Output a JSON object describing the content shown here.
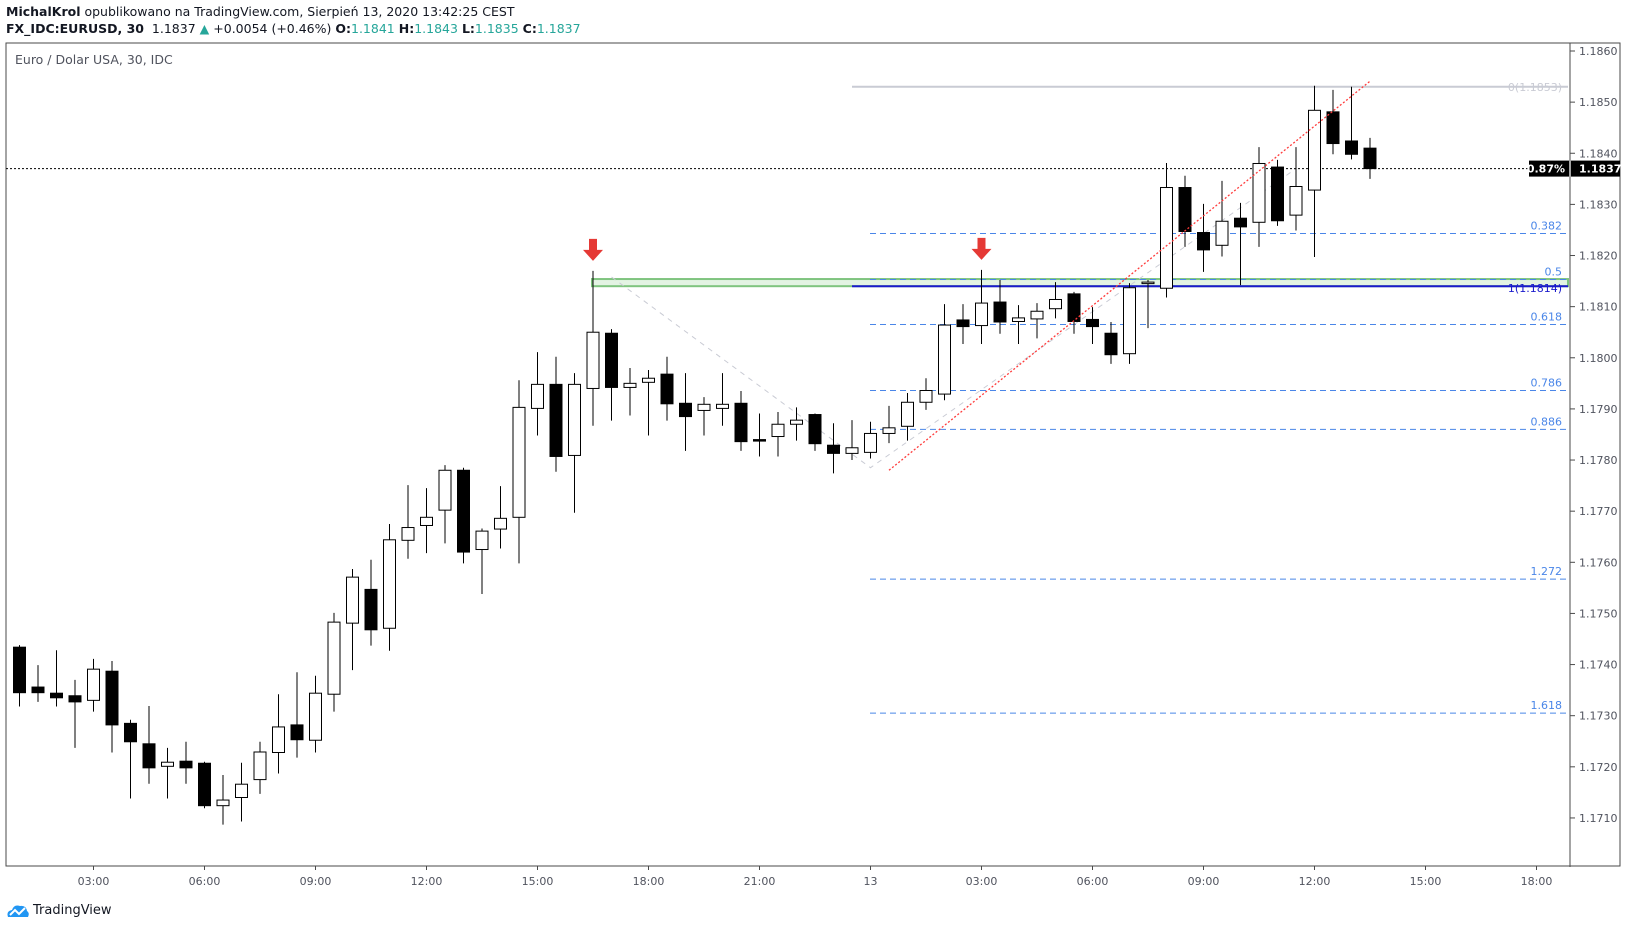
{
  "header": {
    "author": "MichalKrol",
    "published_text": "opublikowano na TradingView.com, Sierpień 13, 2020 13:42:25 CEST",
    "symbol": "FX_IDC:EURUSD, 30",
    "last": "1.1837",
    "change": "+0.0054 (+0.46%)",
    "o_label": "O:",
    "o": "1.1841",
    "h_label": "H:",
    "h": "1.1843",
    "l_label": "L:",
    "l": "1.1835",
    "c_label": "C:",
    "c": "1.1837"
  },
  "legend_title": "Euro / Dolar USA, 30, IDC",
  "branding": "TradingView",
  "colors": {
    "up_body": "#ffffff",
    "down_body": "#000000",
    "teal": "#26a69a",
    "fib_blue": "#4a86e8",
    "zone_fill": "#e3f3e3",
    "zone_border": "#7fc47f",
    "arrow": "#e53935",
    "trend": "#ff3b3b",
    "level0": "#c9cbd4",
    "level1": "#1a1acc"
  },
  "chart_data": {
    "type": "candlestick",
    "title": "Euro / Dolar USA, 30, IDC",
    "ylim": [
      1.17,
      1.1863
    ],
    "y_ticks": [
      "1.1860",
      "1.1850",
      "1.1840",
      "1.1830",
      "1.1820",
      "1.1810",
      "1.1800",
      "1.1790",
      "1.1780",
      "1.1770",
      "1.1760",
      "1.1750",
      "1.1740",
      "1.1730",
      "1.1720",
      "1.1710"
    ],
    "x_ticks": [
      {
        "t": "12 03:00",
        "label": "03:00"
      },
      {
        "t": "12 06:00",
        "label": "06:00"
      },
      {
        "t": "12 09:00",
        "label": "09:00"
      },
      {
        "t": "12 12:00",
        "label": "12:00"
      },
      {
        "t": "12 15:00",
        "label": "15:00"
      },
      {
        "t": "12 18:00",
        "label": "18:00"
      },
      {
        "t": "12 21:00",
        "label": "21:00"
      },
      {
        "t": "13 00:00",
        "label": "13"
      },
      {
        "t": "13 03:00",
        "label": "03:00"
      },
      {
        "t": "13 06:00",
        "label": "06:00"
      },
      {
        "t": "13 09:00",
        "label": "09:00"
      },
      {
        "t": "13 12:00",
        "label": "12:00"
      },
      {
        "t": "13 15:00",
        "label": "15:00"
      },
      {
        "t": "13 18:00",
        "label": "18:00"
      }
    ],
    "candles_fields": [
      "time",
      "open",
      "high",
      "low",
      "close"
    ],
    "candles": [
      [
        "12 01:00",
        1.17434,
        1.17438,
        1.17318,
        1.17345
      ],
      [
        "12 01:30",
        1.17356,
        1.17399,
        1.17327,
        1.17345
      ],
      [
        "12 02:00",
        1.17344,
        1.17428,
        1.17318,
        1.17335
      ],
      [
        "12 02:30",
        1.17339,
        1.1737,
        1.17237,
        1.17327
      ],
      [
        "12 03:00",
        1.1733,
        1.17411,
        1.17308,
        1.17391
      ],
      [
        "12 03:30",
        1.17387,
        1.17407,
        1.17228,
        1.17282
      ],
      [
        "12 04:00",
        1.17285,
        1.17292,
        1.17138,
        1.17249
      ],
      [
        "12 04:30",
        1.17245,
        1.17319,
        1.17167,
        1.17198
      ],
      [
        "12 05:00",
        1.17201,
        1.17237,
        1.17138,
        1.17209
      ],
      [
        "12 05:30",
        1.17211,
        1.17249,
        1.17167,
        1.17198
      ],
      [
        "12 06:00",
        1.17207,
        1.1721,
        1.17119,
        1.17124
      ],
      [
        "12 06:30",
        1.17124,
        1.17184,
        1.17087,
        1.17135
      ],
      [
        "12 07:00",
        1.1714,
        1.17208,
        1.17093,
        1.17166
      ],
      [
        "12 07:30",
        1.17175,
        1.17249,
        1.17147,
        1.17229
      ],
      [
        "12 08:00",
        1.17228,
        1.17342,
        1.17187,
        1.17278
      ],
      [
        "12 08:30",
        1.17282,
        1.17385,
        1.17218,
        1.17253
      ],
      [
        "12 09:00",
        1.17252,
        1.17378,
        1.17228,
        1.17344
      ],
      [
        "12 09:30",
        1.17342,
        1.17501,
        1.17308,
        1.17483
      ],
      [
        "12 10:00",
        1.17481,
        1.17587,
        1.17389,
        1.17571
      ],
      [
        "12 10:30",
        1.17547,
        1.17605,
        1.17437,
        1.17468
      ],
      [
        "12 11:00",
        1.17471,
        1.17675,
        1.17427,
        1.17644
      ],
      [
        "12 11:30",
        1.17643,
        1.17751,
        1.17607,
        1.17668
      ],
      [
        "12 12:00",
        1.17672,
        1.17745,
        1.17618,
        1.17688
      ],
      [
        "12 12:30",
        1.17702,
        1.1779,
        1.17637,
        1.1778
      ],
      [
        "12 13:00",
        1.1778,
        1.17785,
        1.17598,
        1.1762
      ],
      [
        "12 13:30",
        1.17625,
        1.17666,
        1.17538,
        1.17661
      ],
      [
        "12 14:00",
        1.17665,
        1.17749,
        1.17627,
        1.17686
      ],
      [
        "12 14:30",
        1.17688,
        1.17956,
        1.17598,
        1.17903
      ],
      [
        "12 15:00",
        1.17901,
        1.18011,
        1.17848,
        1.17948
      ],
      [
        "12 15:30",
        1.17948,
        1.18002,
        1.17777,
        1.17807
      ],
      [
        "12 16:00",
        1.17809,
        1.1797,
        1.17697,
        1.17948
      ],
      [
        "12 16:30",
        1.1794,
        1.1817,
        1.17867,
        1.1805
      ],
      [
        "12 17:00",
        1.18048,
        1.18056,
        1.17877,
        1.17942
      ],
      [
        "12 17:30",
        1.17942,
        1.1798,
        1.17887,
        1.1795
      ],
      [
        "12 18:00",
        1.17952,
        1.17976,
        1.17848,
        1.1796
      ],
      [
        "12 18:30",
        1.17968,
        1.18002,
        1.17877,
        1.1791
      ],
      [
        "12 19:00",
        1.17911,
        1.1797,
        1.17818,
        1.17885
      ],
      [
        "12 19:30",
        1.17897,
        1.17923,
        1.17848,
        1.17909
      ],
      [
        "12 20:00",
        1.17901,
        1.1797,
        1.17867,
        1.17909
      ],
      [
        "12 20:30",
        1.17911,
        1.17935,
        1.17818,
        1.17836
      ],
      [
        "12 21:00",
        1.1784,
        1.17891,
        1.17807,
        1.17838
      ],
      [
        "12 21:30",
        1.17846,
        1.17894,
        1.17807,
        1.1787
      ],
      [
        "12 22:00",
        1.1787,
        1.17903,
        1.17838,
        1.17878
      ],
      [
        "12 22:30",
        1.17889,
        1.17891,
        1.17818,
        1.17832
      ],
      [
        "12 23:00",
        1.17829,
        1.17872,
        1.17774,
        1.17813
      ],
      [
        "12 23:30",
        1.17813,
        1.17878,
        1.178,
        1.17824
      ],
      [
        "13 00:00",
        1.17815,
        1.17875,
        1.17803,
        1.17852
      ],
      [
        "13 00:30",
        1.17852,
        1.17906,
        1.17833,
        1.17863
      ],
      [
        "13 01:00",
        1.17866,
        1.17931,
        1.17838,
        1.17913
      ],
      [
        "13 01:30",
        1.17913,
        1.1796,
        1.17898,
        1.17936
      ],
      [
        "13 02:00",
        1.17929,
        1.18105,
        1.17917,
        1.18064
      ],
      [
        "13 02:30",
        1.18074,
        1.18105,
        1.18027,
        1.18061
      ],
      [
        "13 03:00",
        1.18063,
        1.18172,
        1.18027,
        1.18107
      ],
      [
        "13 03:30",
        1.18109,
        1.18152,
        1.18047,
        1.1807
      ],
      [
        "13 04:00",
        1.18071,
        1.18103,
        1.18027,
        1.18078
      ],
      [
        "13 04:30",
        1.18076,
        1.18107,
        1.18038,
        1.18091
      ],
      [
        "13 05:00",
        1.18096,
        1.18148,
        1.18077,
        1.18114
      ],
      [
        "13 05:30",
        1.18125,
        1.18129,
        1.18047,
        1.18071
      ],
      [
        "13 06:00",
        1.18075,
        1.18099,
        1.18027,
        1.18061
      ],
      [
        "13 06:30",
        1.18048,
        1.1807,
        1.17988,
        1.18006
      ],
      [
        "13 07:00",
        1.18008,
        1.18146,
        1.17988,
        1.18137
      ],
      [
        "13 07:30",
        1.18146,
        1.18152,
        1.18058,
        1.18148
      ],
      [
        "13 08:00",
        1.18136,
        1.18381,
        1.18118,
        1.18333
      ],
      [
        "13 08:30",
        1.18333,
        1.18356,
        1.18217,
        1.18247
      ],
      [
        "13 09:00",
        1.18245,
        1.18301,
        1.18168,
        1.18211
      ],
      [
        "13 09:30",
        1.1822,
        1.18346,
        1.18198,
        1.18267
      ],
      [
        "13 10:00",
        1.18273,
        1.18303,
        1.18142,
        1.18256
      ],
      [
        "13 10:30",
        1.18265,
        1.18412,
        1.18217,
        1.1838
      ],
      [
        "13 11:00",
        1.18373,
        1.18387,
        1.18258,
        1.18268
      ],
      [
        "13 11:30",
        1.18279,
        1.18412,
        1.18249,
        1.18335
      ],
      [
        "13 12:00",
        1.18328,
        1.18532,
        1.18197,
        1.18484
      ],
      [
        "13 12:30",
        1.18481,
        1.18524,
        1.18398,
        1.18419
      ],
      [
        "13 13:00",
        1.18424,
        1.1853,
        1.18388,
        1.18398
      ],
      [
        "13 13:30",
        1.1841,
        1.1843,
        1.1835,
        1.1837
      ]
    ],
    "last_price": {
      "value": 1.1837,
      "label": "1.1837",
      "pct_label": "0.87%"
    },
    "fib_extension": [
      {
        "level": "0.382",
        "price": 1.18243
      },
      {
        "level": "0.5",
        "price": 1.18153
      },
      {
        "level": "0.618",
        "price": 1.18065
      },
      {
        "level": "0.786",
        "price": 1.17936
      },
      {
        "level": "0.886",
        "price": 1.1786
      },
      {
        "level": "1.272",
        "price": 1.17567
      },
      {
        "level": "1.618",
        "price": 1.17305
      }
    ],
    "retracement_levels": [
      {
        "label": "0(1.1853)",
        "price": 1.1853,
        "color": "#c9cbd4"
      },
      {
        "label": "1(1.1814)",
        "price": 1.1814,
        "color": "#1a1acc"
      }
    ],
    "resistance_zone": {
      "from_time": "12 16:30",
      "top": 1.18154,
      "bottom": 1.1814
    },
    "arrows_down": [
      {
        "time": "12 16:30",
        "price": 1.1817
      },
      {
        "time": "13 03:00",
        "price": 1.18172
      }
    ],
    "trendline": [
      {
        "time": "13 00:30",
        "price": 1.1778
      },
      {
        "time": "13 13:30",
        "price": 1.18541
      }
    ],
    "fib_points_line": [
      {
        "time": "12 17:00",
        "price": 1.18158
      },
      {
        "time": "13 00:00",
        "price": 1.17785
      },
      {
        "time": "13 11:30",
        "price": 1.1837
      }
    ]
  }
}
